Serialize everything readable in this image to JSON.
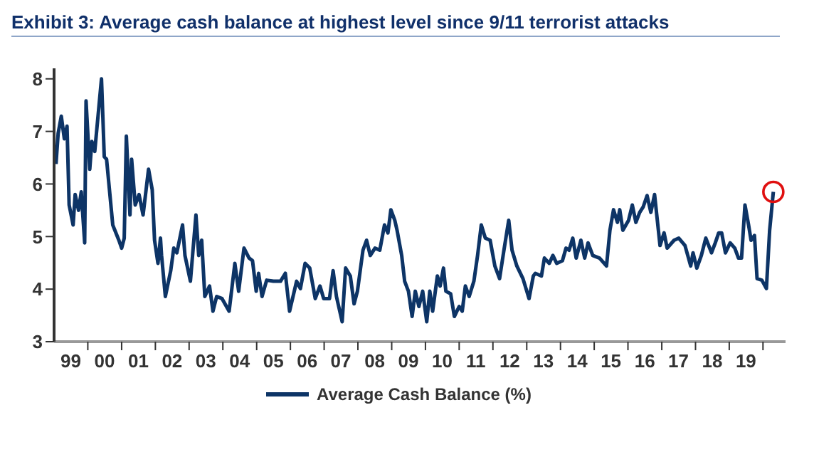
{
  "chart_data": {
    "type": "line",
    "title": "Exhibit 3: Average cash balance at highest level since 9/11 terrorist attacks",
    "xlim": [
      "1999-01-01",
      "2020-09-01"
    ],
    "xticks": [
      {
        "value": "1999-07-01",
        "label": "99"
      },
      {
        "value": "2000-01-01",
        "label": null
      },
      {
        "value": "2000-07-01",
        "label": "00"
      },
      {
        "value": "2001-01-01",
        "label": null
      },
      {
        "value": "2001-07-01",
        "label": "01"
      },
      {
        "value": "2002-01-01",
        "label": null
      },
      {
        "value": "2002-07-01",
        "label": "02"
      },
      {
        "value": "2003-01-01",
        "label": null
      },
      {
        "value": "2003-07-01",
        "label": "03"
      },
      {
        "value": "2004-01-01",
        "label": null
      },
      {
        "value": "2004-07-01",
        "label": "04"
      },
      {
        "value": "2005-01-01",
        "label": null
      },
      {
        "value": "2005-07-01",
        "label": "05"
      },
      {
        "value": "2006-01-01",
        "label": null
      },
      {
        "value": "2006-07-01",
        "label": "06"
      },
      {
        "value": "2007-01-01",
        "label": null
      },
      {
        "value": "2007-07-01",
        "label": "07"
      },
      {
        "value": "2008-01-01",
        "label": null
      },
      {
        "value": "2008-07-01",
        "label": "08"
      },
      {
        "value": "2009-01-01",
        "label": null
      },
      {
        "value": "2009-07-01",
        "label": "09"
      },
      {
        "value": "2010-01-01",
        "label": null
      },
      {
        "value": "2010-07-01",
        "label": "10"
      },
      {
        "value": "2011-01-01",
        "label": null
      },
      {
        "value": "2011-07-01",
        "label": "11"
      },
      {
        "value": "2012-01-01",
        "label": null
      },
      {
        "value": "2012-07-01",
        "label": "12"
      },
      {
        "value": "2013-01-01",
        "label": null
      },
      {
        "value": "2013-07-01",
        "label": "13"
      },
      {
        "value": "2014-01-01",
        "label": null
      },
      {
        "value": "2014-07-01",
        "label": "14"
      },
      {
        "value": "2015-01-01",
        "label": null
      },
      {
        "value": "2015-07-01",
        "label": "15"
      },
      {
        "value": "2016-01-01",
        "label": null
      },
      {
        "value": "2016-07-01",
        "label": "16"
      },
      {
        "value": "2017-01-01",
        "label": null
      },
      {
        "value": "2017-07-01",
        "label": "17"
      },
      {
        "value": "2018-01-01",
        "label": null
      },
      {
        "value": "2018-07-01",
        "label": "18"
      },
      {
        "value": "2019-01-01",
        "label": null
      },
      {
        "value": "2019-07-01",
        "label": "19"
      },
      {
        "value": "2020-01-01",
        "label": null
      }
    ],
    "ylim": [
      3,
      8.2
    ],
    "yticks": [
      3,
      4,
      5,
      6,
      7,
      8
    ],
    "grid": false,
    "legend": "bottom",
    "marker": "none",
    "line_style": "solid",
    "x": [
      "1999-01-22",
      "1999-02-14",
      "1999-03-20",
      "1999-04-22",
      "1999-05-21",
      "1999-06-13",
      "1999-07-26",
      "1999-08-17",
      "1999-09-23",
      "1999-10-22",
      "1999-11-28",
      "1999-12-13",
      "2000-01-22",
      "2000-02-14",
      "2000-03-16",
      "2000-05-28",
      "2000-06-27",
      "2000-07-22",
      "2000-09-27",
      "2000-12-02",
      "2001-01-01",
      "2001-01-29",
      "2001-02-21",
      "2001-04-01",
      "2001-04-19",
      "2001-05-28",
      "2001-07-08",
      "2001-08-21",
      "2001-10-19",
      "2001-11-28",
      "2001-12-23",
      "2002-01-29",
      "2002-02-25",
      "2002-03-09",
      "2002-04-19",
      "2002-06-16",
      "2002-07-19",
      "2002-08-21",
      "2002-10-22",
      "2002-11-17",
      "2003-01-15",
      "2003-03-16",
      "2003-04-15",
      "2003-05-17",
      "2003-06-20",
      "2003-08-10",
      "2003-09-16",
      "2003-10-26",
      "2003-12-23",
      "2004-03-09",
      "2004-05-10",
      "2004-06-20",
      "2004-08-17",
      "2004-10-11",
      "2004-11-17",
      "2004-12-27",
      "2005-01-22",
      "2005-02-28",
      "2005-04-19",
      "2005-07-01",
      "2005-09-16",
      "2005-11-07",
      "2005-12-23",
      "2006-03-09",
      "2006-04-19",
      "2006-06-09",
      "2006-07-29",
      "2006-09-27",
      "2006-11-17",
      "2006-12-27",
      "2007-02-28",
      "2007-04-08",
      "2007-05-14",
      "2007-07-15",
      "2007-08-21",
      "2007-10-11",
      "2007-11-21",
      "2007-12-27",
      "2008-02-25",
      "2008-04-04",
      "2008-05-14",
      "2008-07-04",
      "2008-08-25",
      "2008-10-15",
      "2008-11-21",
      "2008-12-23",
      "2009-02-03",
      "2009-02-28",
      "2009-04-19",
      "2009-05-21",
      "2009-07-01",
      "2009-08-10",
      "2009-09-13",
      "2009-10-22",
      "2009-12-02",
      "2010-01-15",
      "2010-02-17",
      "2010-03-20",
      "2010-05-10",
      "2010-06-09",
      "2010-07-15",
      "2010-08-10",
      "2010-10-01",
      "2010-11-10",
      "2011-01-01",
      "2011-02-03",
      "2011-03-09",
      "2011-04-19",
      "2011-06-09",
      "2011-07-19",
      "2011-08-28",
      "2011-10-11",
      "2011-12-02",
      "2012-01-22",
      "2012-03-13",
      "2012-04-29",
      "2012-06-20",
      "2012-07-26",
      "2012-09-16",
      "2012-11-21",
      "2013-01-26",
      "2013-03-13",
      "2013-04-04",
      "2013-06-09",
      "2013-07-11",
      "2013-09-02",
      "2013-10-11",
      "2013-11-21",
      "2014-01-22",
      "2014-03-02",
      "2014-04-04",
      "2014-05-14",
      "2014-06-20",
      "2014-08-10",
      "2014-09-20",
      "2014-10-26",
      "2014-12-16",
      "2015-02-28",
      "2015-05-14",
      "2015-06-20",
      "2015-07-29",
      "2015-09-09",
      "2015-10-04",
      "2015-11-07",
      "2016-01-08",
      "2016-02-17",
      "2016-03-27",
      "2016-05-07",
      "2016-06-13",
      "2016-07-26",
      "2016-09-05",
      "2016-10-15",
      "2016-12-13",
      "2017-01-26",
      "2017-02-28",
      "2017-05-14",
      "2017-07-04",
      "2017-09-09",
      "2017-11-10",
      "2017-12-05",
      "2018-01-15",
      "2018-03-05",
      "2018-04-22",
      "2018-06-23",
      "2018-08-03",
      "2018-09-09",
      "2018-10-11",
      "2018-11-21",
      "2019-01-11",
      "2019-03-02",
      "2019-04-11",
      "2019-05-14",
      "2019-06-20",
      "2019-07-29",
      "2019-08-25",
      "2019-10-01",
      "2019-10-29",
      "2019-12-20",
      "2020-02-07",
      "2020-03-13",
      "2020-04-22"
    ],
    "series": [
      {
        "name": "Average Cash Balance (%)",
        "color": "#0d3466",
        "values": [
          6.38,
          6.96,
          7.29,
          6.86,
          7.1,
          5.6,
          5.22,
          5.8,
          5.5,
          5.85,
          4.88,
          7.58,
          6.28,
          6.81,
          6.62,
          8.0,
          6.52,
          6.47,
          5.22,
          4.93,
          4.78,
          4.97,
          6.91,
          5.41,
          6.47,
          5.6,
          5.8,
          5.41,
          6.28,
          5.89,
          4.93,
          4.49,
          4.97,
          4.64,
          3.86,
          4.35,
          4.78,
          4.69,
          5.22,
          4.64,
          4.15,
          5.41,
          4.64,
          4.93,
          3.86,
          4.06,
          3.58,
          3.86,
          3.82,
          3.58,
          4.49,
          3.96,
          4.78,
          4.59,
          4.54,
          3.96,
          4.3,
          3.86,
          4.17,
          4.15,
          4.15,
          4.3,
          3.58,
          4.15,
          4.01,
          4.49,
          4.4,
          3.82,
          4.06,
          3.82,
          3.82,
          4.35,
          3.86,
          3.38,
          4.4,
          4.25,
          3.72,
          3.96,
          4.74,
          4.93,
          4.64,
          4.78,
          4.74,
          5.22,
          5.07,
          5.51,
          5.31,
          5.12,
          4.64,
          4.15,
          3.96,
          3.48,
          3.96,
          3.67,
          3.96,
          3.38,
          3.96,
          3.58,
          4.25,
          4.06,
          4.4,
          3.96,
          3.91,
          3.48,
          3.67,
          3.58,
          4.06,
          3.86,
          4.15,
          4.64,
          5.22,
          4.97,
          4.93,
          4.44,
          4.2,
          4.74,
          5.31,
          4.74,
          4.44,
          4.2,
          3.82,
          4.25,
          4.3,
          4.25,
          4.59,
          4.49,
          4.64,
          4.49,
          4.54,
          4.78,
          4.74,
          4.97,
          4.59,
          4.93,
          4.59,
          4.88,
          4.64,
          4.59,
          4.44,
          5.12,
          5.51,
          5.27,
          5.51,
          5.12,
          5.31,
          5.6,
          5.27,
          5.46,
          5.56,
          5.78,
          5.46,
          5.8,
          4.83,
          5.07,
          4.78,
          4.93,
          4.97,
          4.83,
          4.44,
          4.69,
          4.4,
          4.64,
          4.97,
          4.69,
          4.88,
          5.07,
          5.07,
          4.69,
          4.88,
          4.78,
          4.59,
          4.59,
          5.6,
          5.22,
          4.93,
          5.02,
          4.2,
          4.17,
          4.01,
          5.12,
          5.85
        ]
      }
    ]
  }
}
